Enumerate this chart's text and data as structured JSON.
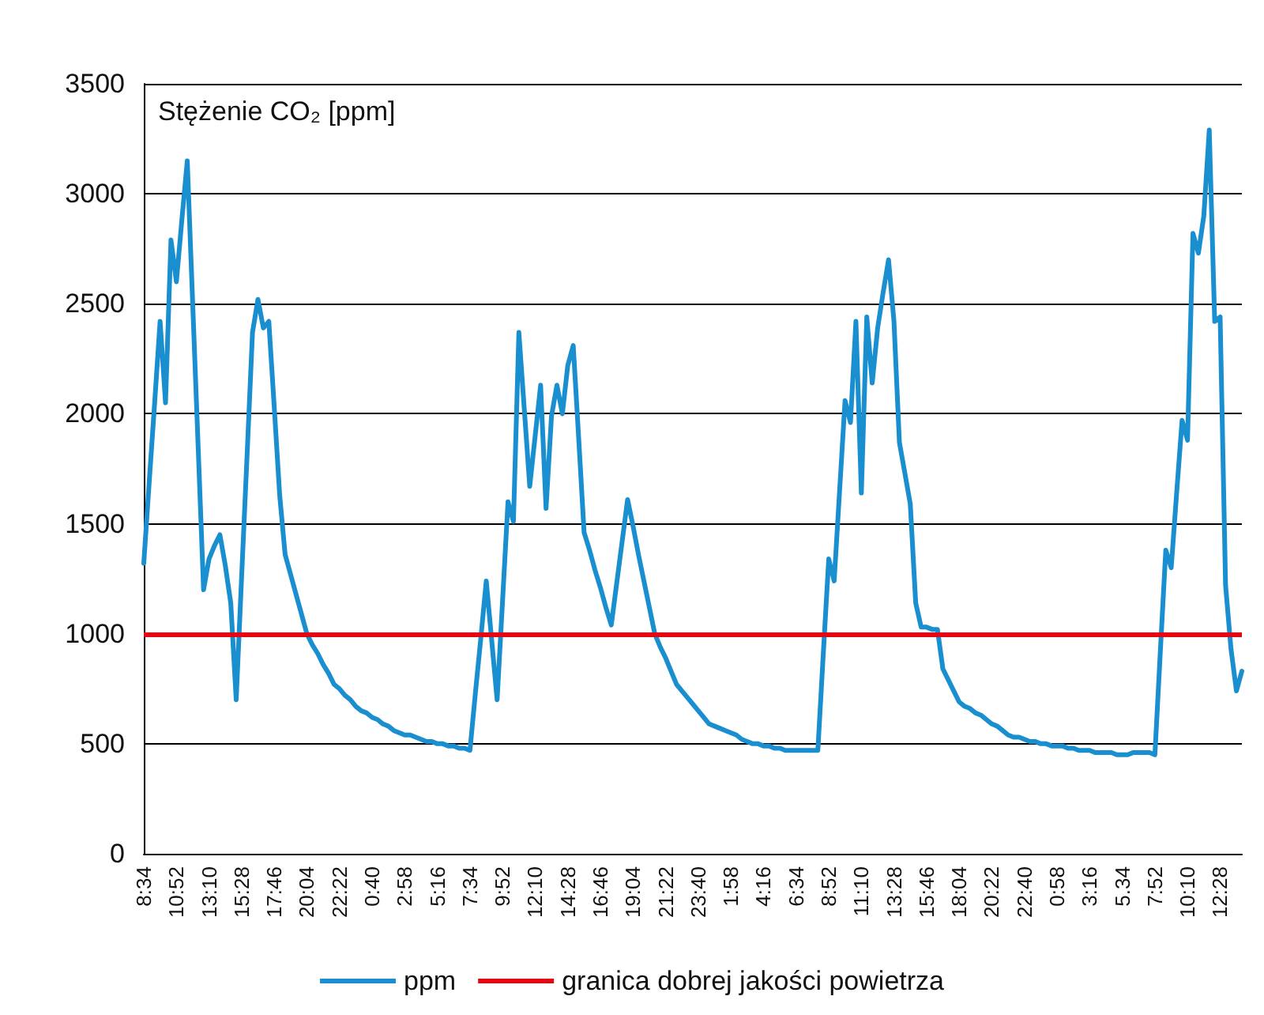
{
  "chart_data": {
    "type": "line",
    "ylabel": "Stężenie CO₂ [ppm]",
    "categories": [
      "8:34",
      null,
      null,
      null,
      null,
      null,
      "10:52",
      null,
      null,
      null,
      null,
      null,
      "13:10",
      null,
      null,
      null,
      null,
      null,
      "15:28",
      null,
      null,
      null,
      null,
      null,
      "17:46",
      null,
      null,
      null,
      null,
      null,
      "20:04",
      null,
      null,
      null,
      null,
      null,
      "22:22",
      null,
      null,
      null,
      null,
      null,
      "0:40",
      null,
      null,
      null,
      null,
      null,
      "2:58",
      null,
      null,
      null,
      null,
      null,
      "5:16",
      null,
      null,
      null,
      null,
      null,
      "7:34",
      null,
      null,
      null,
      null,
      null,
      "9:52",
      null,
      null,
      null,
      null,
      null,
      "12:10",
      null,
      null,
      null,
      null,
      null,
      "14:28",
      null,
      null,
      null,
      null,
      null,
      "16:46",
      null,
      null,
      null,
      null,
      null,
      "19:04",
      null,
      null,
      null,
      null,
      null,
      "21:22",
      null,
      null,
      null,
      null,
      null,
      "23:40",
      null,
      null,
      null,
      null,
      null,
      "1:58",
      null,
      null,
      null,
      null,
      null,
      "4:16",
      null,
      null,
      null,
      null,
      null,
      "6:34",
      null,
      null,
      null,
      null,
      null,
      "8:52",
      null,
      null,
      null,
      null,
      null,
      "11:10",
      null,
      null,
      null,
      null,
      null,
      "13:28",
      null,
      null,
      null,
      null,
      null,
      "15:46",
      null,
      null,
      null,
      null,
      null,
      "18:04",
      null,
      null,
      null,
      null,
      null,
      "20:22",
      null,
      null,
      null,
      null,
      null,
      "22:40",
      null,
      null,
      null,
      null,
      null,
      "0:58",
      null,
      null,
      null,
      null,
      null,
      "3:16",
      null,
      null,
      null,
      null,
      null,
      "5.34",
      null,
      null,
      null,
      null,
      null,
      "7:52",
      null,
      null,
      null,
      null,
      null,
      "10:10",
      null,
      null,
      null,
      null,
      null,
      "12:28",
      null,
      null,
      null,
      null
    ],
    "ylim": [
      0,
      3500
    ],
    "yticks": [
      0,
      500,
      1000,
      1500,
      2000,
      2500,
      3000,
      3500
    ],
    "grid": "y",
    "legend": "bottom",
    "marker": "none",
    "line_style": "solid",
    "ref_lines": [
      {
        "axis": "y",
        "value": 1000,
        "label": "granica dobrej jakości powietrza",
        "color": "#e30613"
      }
    ],
    "series": [
      {
        "name": "ppm",
        "color": "#1a8fd0",
        "values": [
          1320,
          1690,
          2050,
          2420,
          2050,
          2790,
          2600,
          2880,
          3150,
          2500,
          1850,
          1200,
          1340,
          1400,
          1450,
          1310,
          1140,
          700,
          1260,
          1810,
          2370,
          2520,
          2390,
          2420,
          2030,
          1630,
          1360,
          1270,
          1180,
          1090,
          1000,
          950,
          910,
          860,
          820,
          770,
          750,
          720,
          700,
          670,
          650,
          640,
          620,
          610,
          590,
          580,
          560,
          550,
          540,
          540,
          530,
          520,
          510,
          510,
          500,
          500,
          490,
          490,
          480,
          480,
          470,
          730,
          980,
          1240,
          970,
          700,
          1150,
          1600,
          1510,
          2370,
          2020,
          1670,
          1900,
          2130,
          1570,
          1990,
          2130,
          2000,
          2220,
          2310,
          1890,
          1460,
          1380,
          1290,
          1210,
          1120,
          1040,
          1230,
          1420,
          1610,
          1490,
          1360,
          1240,
          1120,
          1000,
          940,
          890,
          830,
          770,
          740,
          710,
          680,
          650,
          620,
          590,
          580,
          570,
          560,
          550,
          540,
          520,
          510,
          500,
          500,
          490,
          490,
          480,
          480,
          470,
          470,
          470,
          470,
          470,
          470,
          470,
          910,
          1340,
          1240,
          1650,
          2060,
          1960,
          2420,
          1640,
          2440,
          2140,
          2390,
          2550,
          2700,
          2420,
          1870,
          1730,
          1590,
          1140,
          1030,
          1030,
          1020,
          1020,
          840,
          790,
          740,
          690,
          670,
          660,
          640,
          630,
          610,
          590,
          580,
          560,
          540,
          530,
          530,
          520,
          510,
          510,
          500,
          500,
          490,
          490,
          490,
          480,
          480,
          470,
          470,
          470,
          460,
          460,
          460,
          460,
          450,
          450,
          450,
          460,
          460,
          460,
          460,
          450,
          920,
          1380,
          1300,
          1640,
          1970,
          1880,
          2820,
          2730,
          2900,
          3290,
          2420,
          2440,
          1220,
          930,
          740,
          830
        ]
      }
    ]
  }
}
